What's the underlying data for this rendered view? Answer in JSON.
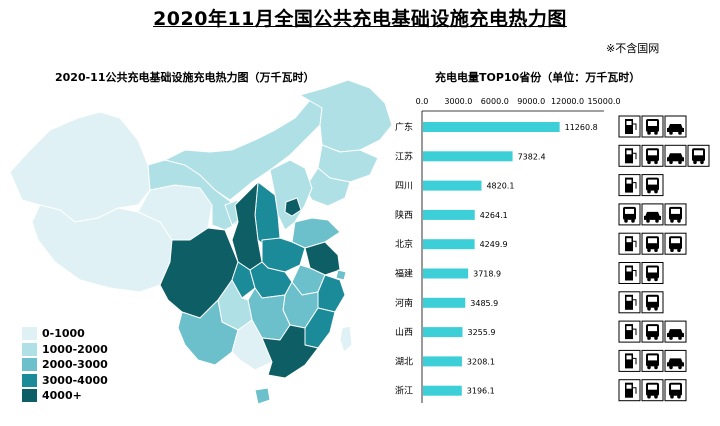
{
  "header": {
    "title": "2020年11月全国公共充电基础设施充电热力图",
    "note": "※不含国网"
  },
  "map": {
    "title": "2020-11公共充电基础设施充电热力图（万千瓦时）",
    "legend": [
      {
        "label": "0-1000",
        "color": "#dff1f4"
      },
      {
        "label": "1000-2000",
        "color": "#aee0e6"
      },
      {
        "label": "2000-3000",
        "color": "#6cc0cb"
      },
      {
        "label": "3000-4000",
        "color": "#1b8b99"
      },
      {
        "label": "4000+",
        "color": "#0e5e66"
      }
    ]
  },
  "chart_data": {
    "type": "bar",
    "orientation": "horizontal",
    "title": "充电电量TOP10省份（单位：万千瓦时）",
    "categories": [
      "广东",
      "江苏",
      "四川",
      "陕西",
      "北京",
      "福建",
      "河南",
      "山西",
      "湖北",
      "浙江"
    ],
    "values": [
      11260.8,
      7382.4,
      4820.1,
      4264.1,
      4249.9,
      3718.9,
      3485.9,
      3255.9,
      3208.1,
      3196.1
    ],
    "value_labels": [
      "11260.8",
      "7382.4",
      "4820.1",
      "4264.1",
      "4249.9",
      "3718.9",
      "3485.9",
      "3255.9",
      "3208.1",
      "3196.1"
    ],
    "xlim": [
      0,
      15000
    ],
    "ticks": [
      "0.0",
      "3000.0",
      "6000.0",
      "9000.0",
      "12000.0",
      "15000.0"
    ],
    "bar_color": "#3ccfd8",
    "legend": "none"
  },
  "icon_rows": [
    [
      "charger-icon",
      "truck-icon",
      "car-icon"
    ],
    [
      "charger-icon",
      "truck-icon",
      "car-icon",
      "truck-icon"
    ],
    [
      "charger-icon",
      "truck-icon"
    ],
    [
      "truck-icon",
      "car-icon",
      "truck-icon"
    ],
    [
      "charger-icon",
      "truck-icon",
      "truck-icon"
    ],
    [
      "charger-icon",
      "truck-icon"
    ],
    [
      "charger-icon",
      "truck-icon"
    ],
    [
      "charger-icon",
      "truck-icon",
      "car-icon"
    ],
    [
      "charger-icon",
      "truck-icon",
      "car-icon"
    ],
    [
      "charger-icon",
      "truck-icon",
      "truck-icon"
    ]
  ]
}
